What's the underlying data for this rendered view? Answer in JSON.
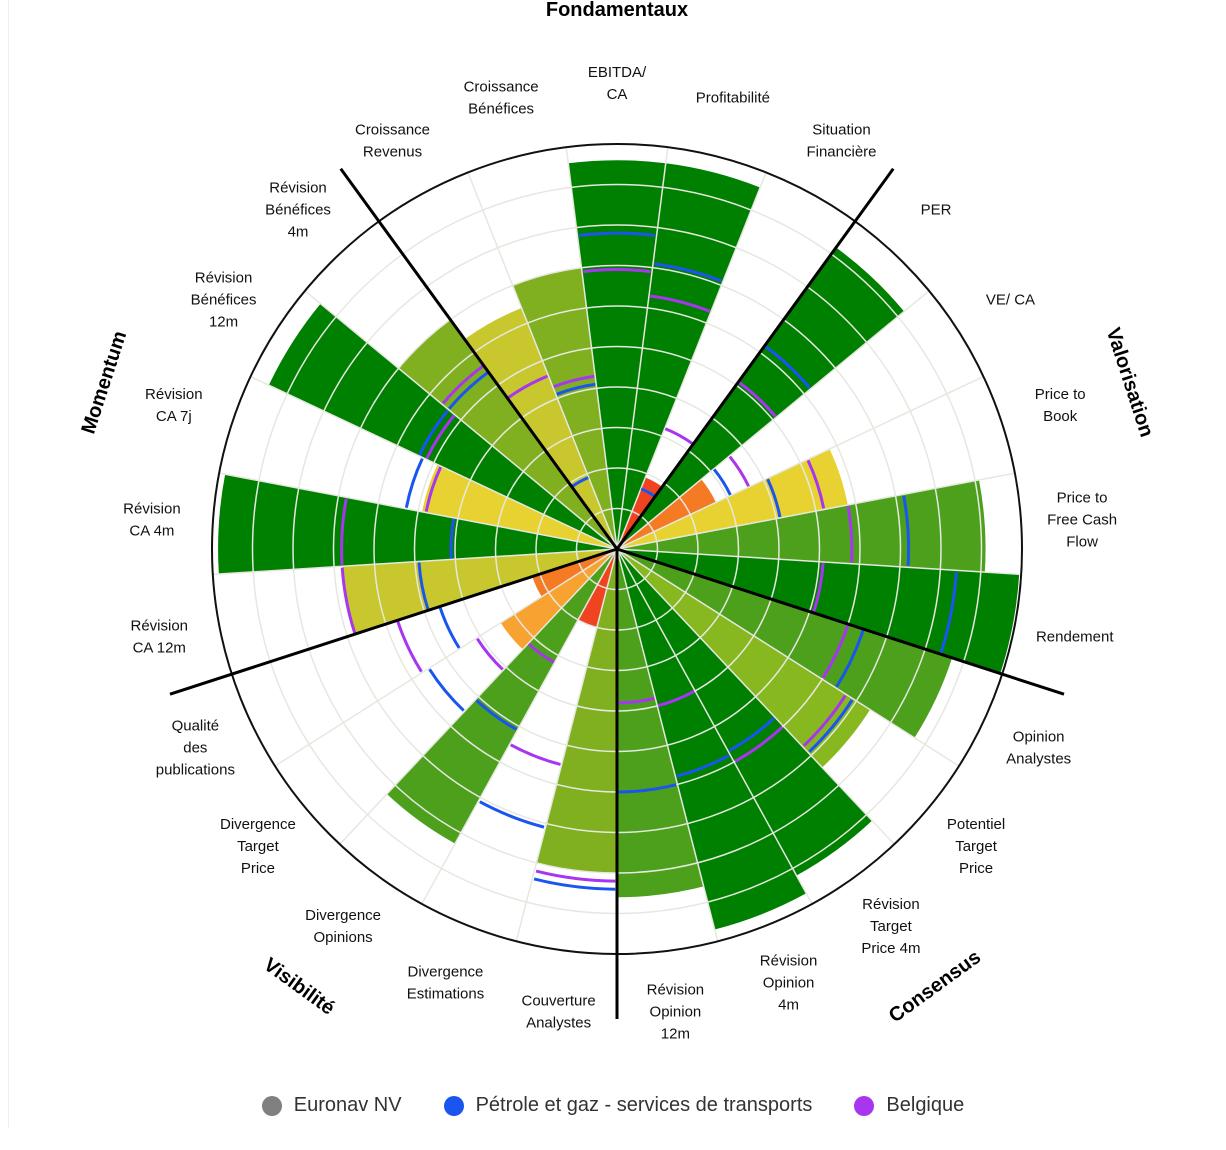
{
  "chart_data": {
    "type": "polar-bar",
    "scale": [
      0,
      10
    ],
    "groups": [
      {
        "name": "Fondamentaux"
      },
      {
        "name": "Valorisation"
      },
      {
        "name": "Consensus"
      },
      {
        "name": "Visibilité"
      },
      {
        "name": "Momentum"
      }
    ],
    "categories": [
      {
        "label": [
          "Croissance",
          "Revenus"
        ],
        "value": 6.4,
        "sector": 1.9,
        "country": 4.6,
        "color": "#c8c82e"
      },
      {
        "label": [
          "Croissance",
          "Bénéfices"
        ],
        "value": 7.0,
        "sector": 4.1,
        "country": 4.3,
        "color": "#80b020"
      },
      {
        "label": [
          "EBITDA/",
          "CA"
        ],
        "value": 9.6,
        "sector": 7.8,
        "country": 6.9,
        "color": "#008000"
      },
      {
        "label": [
          "Profitabilité"
        ],
        "value": 9.6,
        "sector": 7.1,
        "country": 6.3,
        "color": "#008000"
      },
      {
        "label": [
          "Situation",
          "Financière"
        ],
        "value": 1.9,
        "sector": 1.6,
        "country": 3.2,
        "color": "#f04420"
      },
      {
        "label": [
          "PER"
        ],
        "value": 9.2,
        "sector": 6.2,
        "country": 5.1,
        "color": "#008000"
      },
      {
        "label": [
          "VE/ CA"
        ],
        "value": 2.7,
        "sector": 3.1,
        "country": 3.6,
        "color": "#f57a24"
      },
      {
        "label": [
          "Price to",
          "Book"
        ],
        "value": 5.8,
        "sector": 4.1,
        "country": 5.2,
        "color": "#e8d232"
      },
      {
        "label": [
          "Price to",
          "Free Cash",
          "Flow"
        ],
        "value": 9.1,
        "sector": 7.2,
        "country": 5.8,
        "color": "#4ca01c"
      },
      {
        "label": [
          "Rendement"
        ],
        "value": 9.95,
        "sector": 8.4,
        "country": 5.1,
        "color": "#008000"
      },
      {
        "label": [
          "Opinion",
          "Analystes"
        ],
        "value": 8.7,
        "sector": 6.4,
        "country": 6.0,
        "color": "#4ca01c"
      },
      {
        "label": [
          "Potentiel",
          "Target",
          "Price"
        ],
        "value": 7.4,
        "sector": 6.9,
        "country": 6.7,
        "color": "#88b820"
      },
      {
        "label": [
          "Révision",
          "Target",
          "Price 4m"
        ],
        "value": 9.2,
        "sector": 5.7,
        "country": 6.0,
        "color": "#008000"
      },
      {
        "label": [
          "Révision",
          "Opinion",
          "4m"
        ],
        "value": 9.7,
        "sector": 5.8,
        "country": 4.0,
        "color": "#008000"
      },
      {
        "label": [
          "Révision",
          "Opinion",
          "12m"
        ],
        "value": 8.6,
        "sector": 6.0,
        "country": 3.8,
        "color": "#4ca01c"
      },
      {
        "label": [
          "Couverture",
          "Analystes"
        ],
        "value": 8.0,
        "sector": 8.4,
        "country": 8.2,
        "color": "#80b020"
      },
      {
        "label": [
          "Divergence",
          "Estimations"
        ],
        "value": 2.0,
        "sector": 7.1,
        "country": 5.5,
        "color": "#f04420"
      },
      {
        "label": [
          "Divergence",
          "Opinions"
        ],
        "value": 8.3,
        "sector": 5.1,
        "country": 3.2,
        "color": "#4ca01c"
      },
      {
        "label": [
          "Divergence",
          "Target",
          "Price"
        ],
        "value": 3.4,
        "sector": 5.5,
        "country": 4.1,
        "color": "#f8a232"
      },
      {
        "label": [
          "Qualité",
          "des",
          "publications"
        ],
        "value": 2.2,
        "sector": 4.6,
        "country": 5.7,
        "color": "#f57a24"
      },
      {
        "label": [
          "Révision",
          "CA 12m"
        ],
        "value": 6.8,
        "sector": 4.9,
        "country": 6.8,
        "color": "#c8c82e"
      },
      {
        "label": [
          "Révision",
          "CA 4m"
        ],
        "value": 9.85,
        "sector": 4.1,
        "country": 6.8,
        "color": "#008000"
      },
      {
        "label": [
          "Révision",
          "CA 7j"
        ],
        "value": 4.9,
        "sector": 5.3,
        "country": 4.8,
        "color": "#e8d232"
      },
      {
        "label": [
          "Révision",
          "Bénéfices",
          "12m"
        ],
        "value": 9.5,
        "sector": 5.4,
        "country": 5.2,
        "color": "#008000"
      },
      {
        "label": [
          "Révision",
          "Bénéfices",
          "4m"
        ],
        "value": 7.0,
        "sector": 5.4,
        "country": 5.6,
        "color": "#80b020"
      }
    ],
    "legend": [
      {
        "name": "Euronav NV",
        "color": "#808080"
      },
      {
        "name": "Pétrole et gaz - services de transports",
        "color": "#1a55f0"
      },
      {
        "name": "Belgique",
        "color": "#a835f0"
      }
    ]
  }
}
